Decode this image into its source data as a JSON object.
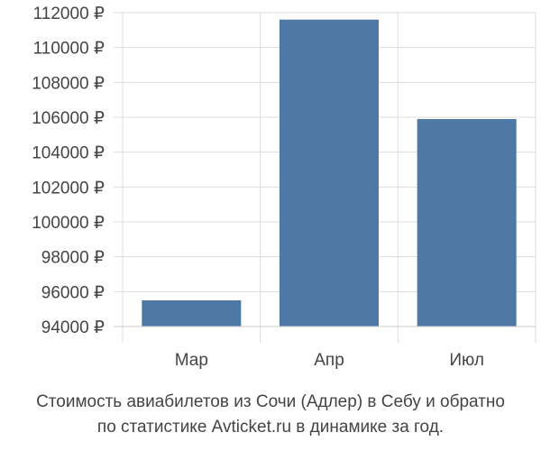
{
  "chart_data": {
    "type": "bar",
    "categories": [
      "Мар",
      "Апр",
      "Июл"
    ],
    "values": [
      95500,
      111600,
      105900
    ],
    "y_ticks": [
      94000,
      96000,
      98000,
      100000,
      102000,
      104000,
      106000,
      108000,
      110000,
      112000
    ],
    "y_tick_labels": [
      "94000 ₽",
      "96000 ₽",
      "98000 ₽",
      "100000 ₽",
      "102000 ₽",
      "104000 ₽",
      "106000 ₽",
      "108000 ₽",
      "110000 ₽",
      "112000 ₽"
    ],
    "ylim": [
      94000,
      112000
    ],
    "grid": true,
    "bar_color": "#4e78a6",
    "title": "",
    "xlabel": "",
    "ylabel": ""
  },
  "caption": {
    "line1": "Стоимость авиабилетов из Сочи (Адлер) в Себу и обратно",
    "line2": "по статистике Avticket.ru в динамике за год."
  }
}
